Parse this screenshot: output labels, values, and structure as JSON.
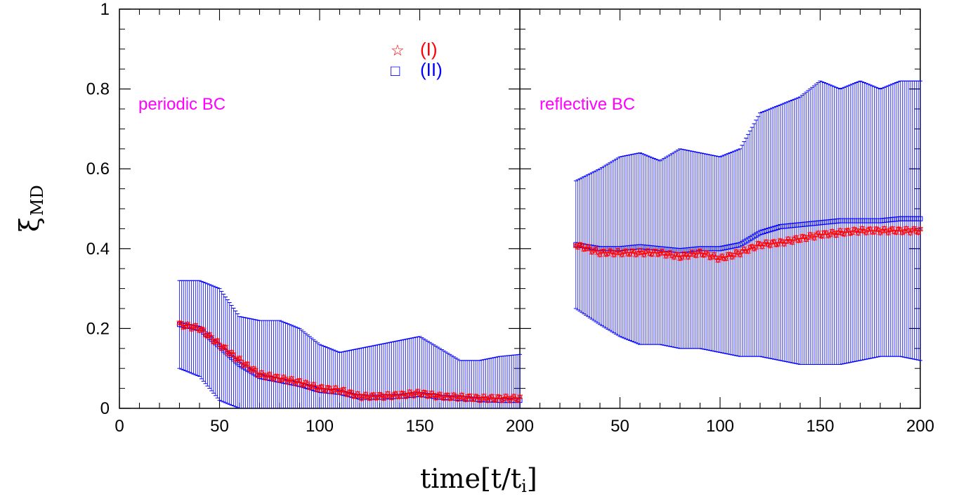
{
  "chart_data": {
    "type": "scatter",
    "xlabel": "time[t/t",
    "xlabel_sub": "i",
    "xlabel_close": "]",
    "ylabel": "ξ",
    "ylabel_sub": "MD",
    "ylim": [
      0,
      1
    ],
    "y_ticks": [
      "0",
      "0.2",
      "0.4",
      "0.6",
      "0.8",
      "1"
    ],
    "y_tick_values": [
      0,
      0.2,
      0.4,
      0.6,
      0.8,
      1.0
    ],
    "legend_placement": "top-right of left panel",
    "legend": [
      {
        "marker": "☆",
        "label": "(I)",
        "color": "#ff0000"
      },
      {
        "marker": "□",
        "label": "(II)",
        "color": "#0000ff"
      }
    ],
    "series_colors": {
      "I": "#ff0000",
      "II": "#0000ff",
      "panel_label": "#ff00ff"
    },
    "panels": [
      {
        "label": "periodic BC",
        "xlim": [
          0,
          200
        ],
        "x_ticks": [
          "0",
          "50",
          "100",
          "150",
          "200"
        ],
        "x_tick_values": [
          0,
          50,
          100,
          150,
          200
        ],
        "series": [
          {
            "name": "(I)",
            "x": [
              30,
              40,
              50,
              60,
              70,
              80,
              90,
              100,
              110,
              120,
              130,
              140,
              150,
              160,
              170,
              180,
              190,
              200
            ],
            "y": [
              0.21,
              0.2,
              0.16,
              0.12,
              0.085,
              0.075,
              0.065,
              0.05,
              0.045,
              0.03,
              0.03,
              0.033,
              0.038,
              0.03,
              0.028,
              0.025,
              0.025,
              0.025
            ]
          },
          {
            "name": "(II)",
            "x": [
              30,
              40,
              50,
              60,
              70,
              80,
              90,
              100,
              110,
              120,
              130,
              140,
              150,
              160,
              170,
              180,
              190,
              200
            ],
            "y": [
              0.21,
              0.2,
              0.155,
              0.11,
              0.08,
              0.07,
              0.06,
              0.045,
              0.04,
              0.028,
              0.028,
              0.03,
              0.035,
              0.028,
              0.025,
              0.022,
              0.02,
              0.02
            ],
            "err_upper": [
              0.32,
              0.32,
              0.3,
              0.23,
              0.22,
              0.22,
              0.2,
              0.16,
              0.14,
              0.15,
              0.16,
              0.17,
              0.18,
              0.15,
              0.12,
              0.12,
              0.13,
              0.135
            ],
            "err_lower": [
              0.1,
              0.08,
              0.02,
              0,
              0,
              0,
              0,
              0,
              0,
              0,
              0,
              0,
              0,
              0,
              0,
              0,
              0,
              0
            ]
          }
        ]
      },
      {
        "label": "reflective BC",
        "xlim": [
          0,
          200
        ],
        "x_ticks": [
          "50",
          "100",
          "150",
          "200"
        ],
        "x_tick_values": [
          50,
          100,
          150,
          200
        ],
        "series": [
          {
            "name": "(I)",
            "x": [
              28,
              40,
              50,
              60,
              70,
              80,
              90,
              100,
              110,
              120,
              130,
              140,
              150,
              160,
              170,
              180,
              190,
              200
            ],
            "y": [
              0.41,
              0.39,
              0.39,
              0.39,
              0.39,
              0.38,
              0.39,
              0.375,
              0.39,
              0.41,
              0.415,
              0.425,
              0.435,
              0.44,
              0.445,
              0.445,
              0.445,
              0.445
            ]
          },
          {
            "name": "(II)",
            "x": [
              28,
              40,
              50,
              60,
              70,
              80,
              90,
              100,
              110,
              120,
              130,
              140,
              150,
              160,
              170,
              180,
              190,
              200
            ],
            "y": [
              0.41,
              0.4,
              0.4,
              0.405,
              0.4,
              0.395,
              0.4,
              0.4,
              0.41,
              0.44,
              0.455,
              0.46,
              0.465,
              0.47,
              0.47,
              0.47,
              0.475,
              0.475
            ],
            "err_upper": [
              0.57,
              0.6,
              0.63,
              0.64,
              0.62,
              0.65,
              0.64,
              0.63,
              0.65,
              0.74,
              0.76,
              0.78,
              0.82,
              0.8,
              0.82,
              0.8,
              0.82,
              0.82
            ],
            "err_lower": [
              0.25,
              0.21,
              0.18,
              0.16,
              0.16,
              0.15,
              0.15,
              0.14,
              0.13,
              0.13,
              0.12,
              0.11,
              0.11,
              0.11,
              0.12,
              0.13,
              0.13,
              0.12
            ]
          }
        ]
      }
    ]
  }
}
